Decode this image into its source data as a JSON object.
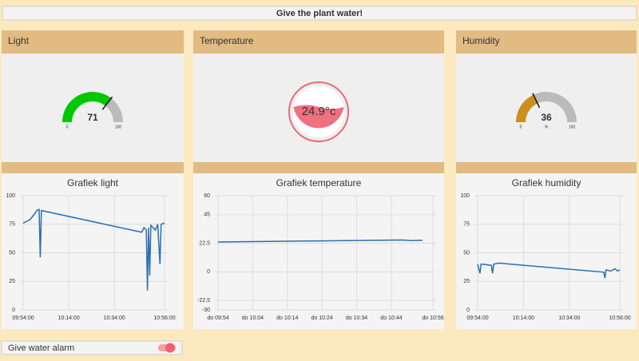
{
  "header": {
    "title": "Give the plant water!"
  },
  "panels": [
    {
      "title": "Light",
      "gauge": {
        "type": "gauge",
        "value": 71,
        "min": 0,
        "max": 100,
        "color": "#00c800"
      },
      "chart": {
        "type": "line",
        "title": "Grafiek light",
        "color": "#2a6fb0",
        "x": [
          "09:54:00",
          "09:55:00",
          "09:57:00",
          "09:59:00",
          "10:00:00",
          "10:01:00",
          "10:01:30",
          "10:02:00",
          "10:46:00",
          "10:47:00",
          "10:48:00",
          "10:48:30",
          "10:49:00",
          "10:49:30",
          "10:50:00",
          "10:52:00",
          "10:53:00",
          "10:54:00",
          "10:54:30",
          "10:56:00"
        ],
        "values": [
          76,
          77,
          79,
          84,
          87,
          88,
          46,
          87,
          68,
          72,
          70,
          17,
          72,
          30,
          74,
          70,
          75,
          40,
          75,
          76
        ],
        "xlim": [
          "09:54:00",
          "10:56:00"
        ],
        "xticks": [
          "09:54:00",
          "10:14:00",
          "10:34:00",
          "10:56:00"
        ],
        "ylim": [
          0,
          100
        ],
        "yticks": [
          0,
          25,
          50,
          75,
          100
        ]
      }
    },
    {
      "title": "Temperature",
      "gauge": {
        "type": "level",
        "value": 24.9,
        "value_label": "24.9°c",
        "color": "#f07080"
      },
      "chart": {
        "type": "line",
        "title": "Grafiek temperature",
        "color": "#2a6fb0",
        "x": [
          "09:54",
          "10:04",
          "10:14",
          "10:24",
          "10:34",
          "10:44",
          "10:47",
          "10:50",
          "10:53"
        ],
        "values": [
          23.5,
          23.8,
          24.1,
          24.4,
          24.7,
          25,
          25.1,
          24.6,
          24.8
        ],
        "xlim": [
          "09:54",
          "10:56"
        ],
        "xticks": [
          {
            "value": "09:54",
            "label": "do 09:54"
          },
          {
            "value": "10:04",
            "label": "do 10:04"
          },
          {
            "value": "10:14",
            "label": "do 10:14"
          },
          {
            "value": "10:24",
            "label": "do 10:24"
          },
          {
            "value": "10:34",
            "label": "do 10:34"
          },
          {
            "value": "10:44",
            "label": "do 10:44"
          },
          {
            "value": "10:56",
            "label": "do 10:56"
          }
        ],
        "ylim": [
          -30,
          60
        ],
        "yticks": [
          -30,
          {
            "value": -22.5,
            "label": "-22,5"
          },
          0,
          {
            "value": 22.5,
            "label": "22,5"
          },
          45,
          60
        ]
      }
    },
    {
      "title": "Humidity",
      "gauge": {
        "type": "gauge",
        "value": 36,
        "min": 0,
        "max": 100,
        "unit": "%",
        "color": "#cc8f1c"
      },
      "chart": {
        "type": "line",
        "title": "Grafiek humidity",
        "color": "#2a6fb0",
        "x": [
          "09:54:00",
          "09:55:00",
          "09:55:30",
          "09:56:00",
          "10:00:00",
          "10:00:30",
          "10:01:00",
          "10:03:00",
          "10:49:00",
          "10:49:30",
          "10:50:00",
          "10:52:00",
          "10:54:00",
          "10:55:00",
          "10:56:00"
        ],
        "values": [
          40,
          32,
          40,
          40,
          39,
          32,
          40,
          41,
          33,
          28,
          35,
          34,
          36,
          34,
          35
        ],
        "xlim": [
          "09:54:00",
          "10:56:00"
        ],
        "xticks": [
          "09:54:00",
          "10:14:00",
          "10:34:00",
          "10:56:00"
        ],
        "ylim": [
          0,
          100
        ],
        "yticks": [
          0,
          25,
          50,
          75,
          100
        ]
      }
    }
  ],
  "toggle": {
    "label": "Give water alarm",
    "on": true
  }
}
